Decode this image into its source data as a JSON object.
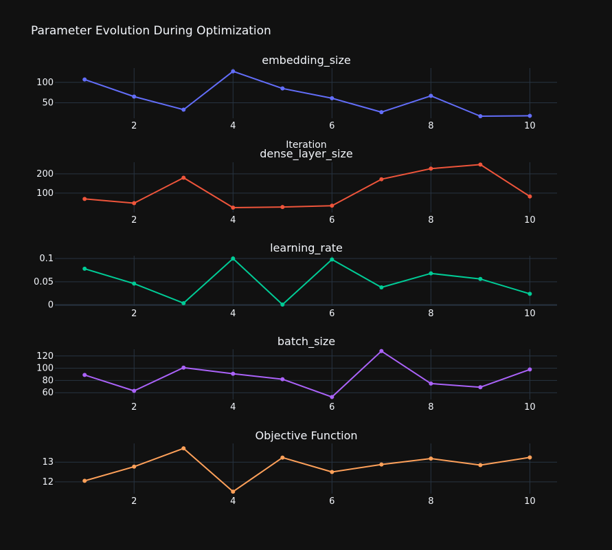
{
  "title": "Parameter Evolution During Optimization",
  "xaxis_title": "Iteration",
  "colors": {
    "background": "#111111",
    "grid": "#283442",
    "text": "#f2f5fa"
  },
  "chart_data": [
    {
      "type": "line",
      "title": "embedding_size",
      "x": [
        1,
        2,
        3,
        4,
        5,
        6,
        7,
        8,
        9,
        10
      ],
      "y": [
        107,
        65,
        33,
        127,
        85,
        61,
        27,
        67,
        17,
        18
      ],
      "color": "#636efa",
      "xlim": [
        0.4,
        10.55
      ],
      "ylim": [
        12,
        135
      ],
      "xticks": [
        2,
        4,
        6,
        8,
        10
      ],
      "yticks": [
        50,
        100
      ],
      "ytick_labels": [
        "50",
        "100"
      ]
    },
    {
      "type": "line",
      "title": "dense_layer_size",
      "x": [
        1,
        2,
        3,
        4,
        5,
        6,
        7,
        8,
        9,
        10
      ],
      "y": [
        70,
        48,
        180,
        25,
        28,
        35,
        172,
        227,
        248,
        83
      ],
      "color": "#ef553b",
      "xlim": [
        0.4,
        10.55
      ],
      "ylim": [
        0,
        260
      ],
      "xticks": [
        2,
        4,
        6,
        8,
        10
      ],
      "yticks": [
        100,
        200
      ],
      "ytick_labels": [
        "100",
        "200"
      ]
    },
    {
      "type": "line",
      "title": "learning_rate",
      "x": [
        1,
        2,
        3,
        4,
        5,
        6,
        7,
        8,
        9,
        10
      ],
      "y": [
        0.078,
        0.046,
        0.004,
        0.1,
        0.001,
        0.098,
        0.038,
        0.068,
        0.056,
        0.024
      ],
      "color": "#00cc96",
      "xlim": [
        0.4,
        10.55
      ],
      "ylim": [
        -0.002,
        0.106
      ],
      "xticks": [
        2,
        4,
        6,
        8,
        10
      ],
      "yticks": [
        0,
        0.05,
        0.1
      ],
      "ytick_labels": [
        "0",
        "0.05",
        "0.1"
      ]
    },
    {
      "type": "line",
      "title": "batch_size",
      "x": [
        1,
        2,
        3,
        4,
        5,
        6,
        7,
        8,
        9,
        10
      ],
      "y": [
        89,
        63,
        101,
        91,
        82,
        53,
        128,
        75,
        69,
        98
      ],
      "color": "#ab63fa",
      "xlim": [
        0.4,
        10.55
      ],
      "ylim": [
        49,
        131
      ],
      "xticks": [
        2,
        4,
        6,
        8,
        10
      ],
      "yticks": [
        60,
        80,
        100,
        120
      ],
      "ytick_labels": [
        "60",
        "80",
        "100",
        "120"
      ]
    },
    {
      "type": "line",
      "title": "Objective Function",
      "x": [
        1,
        2,
        3,
        4,
        5,
        6,
        7,
        8,
        9,
        10
      ],
      "y": [
        12.05,
        12.77,
        13.7,
        11.5,
        13.23,
        12.5,
        12.88,
        13.18,
        12.85,
        13.24
      ],
      "color": "#ffa15a",
      "xlim": [
        0.4,
        10.55
      ],
      "ylim": [
        11.4,
        13.95
      ],
      "xticks": [
        2,
        4,
        6,
        8,
        10
      ],
      "yticks": [
        12,
        13
      ],
      "ytick_labels": [
        "12",
        "13"
      ]
    }
  ]
}
